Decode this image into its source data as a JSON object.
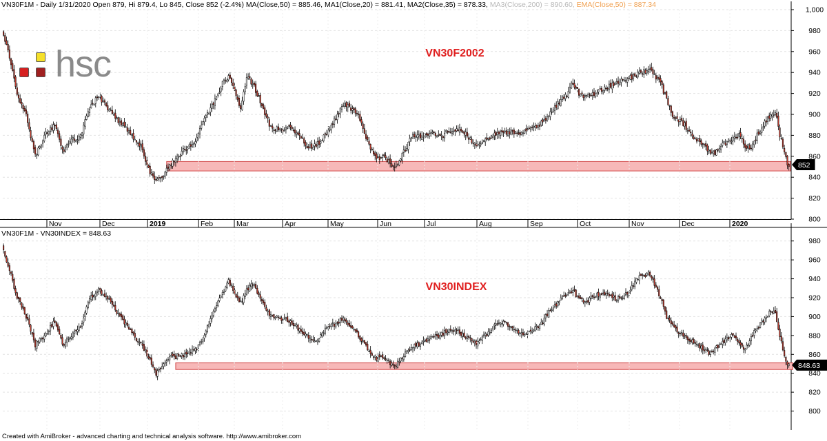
{
  "header_top": {
    "main": "VN30F1M - Daily 1/31/2020 Open 879, Hi 879.4, Lo 845, Close 852 (-2.4%) MA(Close,50) = 885.46, MA1(Close,20) = 881.41, MA2(Close,35) = 878.33,",
    "ma3": "MA3(Close,200) = 890.60,",
    "ema": "EMA(Close,50) = 887.34"
  },
  "header_bottom": "VN30F1M - VN30INDEX = 848.63",
  "logo": {
    "text": "hsc"
  },
  "footer": "Created with AmiBroker - advanced charting and technical analysis software. http://www.amibroker.com",
  "colors": {
    "up_candle": "#ffffff",
    "down_candle": "#c0392b",
    "support_fill": "#f7b8b8",
    "support_stroke": "#d24a4a",
    "label_red": "#e02020",
    "ma3_text": "#b8b8b8",
    "ema_text": "#f0a050"
  },
  "chart_data": [
    {
      "type": "candlestick",
      "title": "VN30F2002",
      "ylim": [
        800,
        1000
      ],
      "y_ticks": [
        "800",
        "820",
        "840",
        "860",
        "880",
        "900",
        "920",
        "940",
        "960",
        "980",
        "1,000"
      ],
      "x_ticks": [
        "Nov",
        "Dec",
        "2019",
        "Feb",
        "Mar",
        "Apr",
        "May",
        "Jun",
        "Jul",
        "Aug",
        "Sep",
        "Oct",
        "Nov",
        "Dec",
        "2020"
      ],
      "x_ticks_bold": [
        "2019",
        "2020"
      ],
      "last_value_label": "852",
      "last_value": 852,
      "support_zone": {
        "from": 846,
        "to": 855
      },
      "trajectory": [
        [
          0,
          980
        ],
        [
          4,
          960
        ],
        [
          10,
          920
        ],
        [
          16,
          900
        ],
        [
          22,
          860
        ],
        [
          28,
          880
        ],
        [
          35,
          890
        ],
        [
          40,
          865
        ],
        [
          46,
          875
        ],
        [
          52,
          880
        ],
        [
          58,
          905
        ],
        [
          64,
          918
        ],
        [
          70,
          905
        ],
        [
          78,
          892
        ],
        [
          86,
          880
        ],
        [
          92,
          870
        ],
        [
          98,
          845
        ],
        [
          102,
          835
        ],
        [
          106,
          840
        ],
        [
          110,
          850
        ],
        [
          116,
          860
        ],
        [
          122,
          868
        ],
        [
          128,
          875
        ],
        [
          134,
          895
        ],
        [
          140,
          910
        ],
        [
          146,
          930
        ],
        [
          150,
          936
        ],
        [
          154,
          925
        ],
        [
          158,
          905
        ],
        [
          162,
          935
        ],
        [
          166,
          930
        ],
        [
          170,
          915
        ],
        [
          174,
          900
        ],
        [
          178,
          888
        ],
        [
          184,
          885
        ],
        [
          190,
          888
        ],
        [
          196,
          880
        ],
        [
          202,
          870
        ],
        [
          208,
          870
        ],
        [
          214,
          880
        ],
        [
          220,
          895
        ],
        [
          226,
          910
        ],
        [
          232,
          905
        ],
        [
          236,
          900
        ],
        [
          240,
          880
        ],
        [
          244,
          868
        ],
        [
          248,
          858
        ],
        [
          252,
          860
        ],
        [
          256,
          855
        ],
        [
          260,
          850
        ],
        [
          264,
          858
        ],
        [
          268,
          870
        ],
        [
          272,
          880
        ],
        [
          278,
          878
        ],
        [
          284,
          882
        ],
        [
          290,
          878
        ],
        [
          296,
          884
        ],
        [
          302,
          886
        ],
        [
          308,
          880
        ],
        [
          314,
          870
        ],
        [
          320,
          875
        ],
        [
          326,
          880
        ],
        [
          332,
          883
        ],
        [
          338,
          884
        ],
        [
          344,
          882
        ],
        [
          350,
          886
        ],
        [
          356,
          890
        ],
        [
          362,
          900
        ],
        [
          368,
          910
        ],
        [
          374,
          920
        ],
        [
          378,
          930
        ],
        [
          382,
          920
        ],
        [
          386,
          916
        ],
        [
          392,
          920
        ],
        [
          398,
          925
        ],
        [
          404,
          928
        ],
        [
          410,
          932
        ],
        [
          416,
          935
        ],
        [
          422,
          940
        ],
        [
          428,
          942
        ],
        [
          432,
          938
        ],
        [
          436,
          930
        ],
        [
          440,
          915
        ],
        [
          444,
          900
        ],
        [
          448,
          895
        ],
        [
          452,
          890
        ],
        [
          456,
          880
        ],
        [
          460,
          876
        ],
        [
          464,
          872
        ],
        [
          468,
          865
        ],
        [
          472,
          862
        ],
        [
          476,
          870
        ],
        [
          480,
          874
        ],
        [
          484,
          876
        ],
        [
          488,
          880
        ],
        [
          492,
          870
        ],
        [
          496,
          868
        ],
        [
          500,
          880
        ],
        [
          504,
          890
        ],
        [
          508,
          898
        ],
        [
          512,
          902
        ],
        [
          515,
          880
        ],
        [
          518,
          866
        ],
        [
          520,
          852
        ]
      ]
    },
    {
      "type": "candlestick",
      "title": "VN30INDEX",
      "ylim": [
        780,
        990
      ],
      "y_ticks": [
        "800",
        "820",
        "840",
        "860",
        "880",
        "900",
        "920",
        "940",
        "960",
        "980"
      ],
      "last_value_label": "848.63",
      "last_value": 848.63,
      "support_zone": {
        "from": 844,
        "to": 851
      },
      "trajectory": [
        [
          0,
          975
        ],
        [
          4,
          955
        ],
        [
          10,
          920
        ],
        [
          16,
          900
        ],
        [
          22,
          870
        ],
        [
          28,
          880
        ],
        [
          35,
          895
        ],
        [
          40,
          870
        ],
        [
          46,
          880
        ],
        [
          52,
          890
        ],
        [
          58,
          920
        ],
        [
          64,
          928
        ],
        [
          70,
          920
        ],
        [
          76,
          905
        ],
        [
          82,
          892
        ],
        [
          88,
          878
        ],
        [
          92,
          870
        ],
        [
          98,
          855
        ],
        [
          102,
          838
        ],
        [
          106,
          850
        ],
        [
          110,
          856
        ],
        [
          116,
          858
        ],
        [
          122,
          860
        ],
        [
          128,
          865
        ],
        [
          134,
          880
        ],
        [
          140,
          905
        ],
        [
          146,
          925
        ],
        [
          150,
          938
        ],
        [
          154,
          925
        ],
        [
          158,
          915
        ],
        [
          162,
          928
        ],
        [
          166,
          935
        ],
        [
          170,
          922
        ],
        [
          174,
          910
        ],
        [
          178,
          900
        ],
        [
          184,
          898
        ],
        [
          190,
          896
        ],
        [
          196,
          888
        ],
        [
          202,
          880
        ],
        [
          208,
          875
        ],
        [
          214,
          886
        ],
        [
          220,
          892
        ],
        [
          226,
          898
        ],
        [
          232,
          888
        ],
        [
          236,
          880
        ],
        [
          240,
          872
        ],
        [
          244,
          860
        ],
        [
          248,
          856
        ],
        [
          252,
          858
        ],
        [
          256,
          852
        ],
        [
          260,
          848
        ],
        [
          264,
          855
        ],
        [
          268,
          862
        ],
        [
          272,
          868
        ],
        [
          278,
          872
        ],
        [
          284,
          878
        ],
        [
          290,
          880
        ],
        [
          296,
          886
        ],
        [
          302,
          884
        ],
        [
          308,
          878
        ],
        [
          314,
          872
        ],
        [
          320,
          880
        ],
        [
          326,
          890
        ],
        [
          332,
          895
        ],
        [
          338,
          888
        ],
        [
          344,
          882
        ],
        [
          350,
          886
        ],
        [
          356,
          890
        ],
        [
          362,
          905
        ],
        [
          368,
          915
        ],
        [
          374,
          925
        ],
        [
          378,
          928
        ],
        [
          382,
          918
        ],
        [
          386,
          915
        ],
        [
          392,
          922
        ],
        [
          398,
          925
        ],
        [
          404,
          920
        ],
        [
          410,
          918
        ],
        [
          416,
          930
        ],
        [
          422,
          942
        ],
        [
          428,
          945
        ],
        [
          432,
          935
        ],
        [
          436,
          920
        ],
        [
          440,
          900
        ],
        [
          444,
          890
        ],
        [
          448,
          884
        ],
        [
          452,
          878
        ],
        [
          456,
          875
        ],
        [
          460,
          872
        ],
        [
          464,
          866
        ],
        [
          468,
          862
        ],
        [
          472,
          866
        ],
        [
          476,
          870
        ],
        [
          480,
          878
        ],
        [
          484,
          880
        ],
        [
          488,
          870
        ],
        [
          492,
          864
        ],
        [
          496,
          878
        ],
        [
          500,
          888
        ],
        [
          504,
          896
        ],
        [
          508,
          904
        ],
        [
          512,
          905
        ],
        [
          515,
          880
        ],
        [
          518,
          858
        ],
        [
          520,
          848.63
        ]
      ]
    }
  ]
}
